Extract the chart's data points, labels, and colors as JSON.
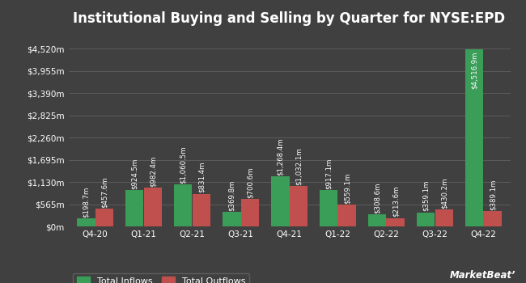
{
  "title": "Institutional Buying and Selling by Quarter for NYSE:EPD",
  "categories": [
    "Q4-20",
    "Q1-21",
    "Q2-21",
    "Q3-21",
    "Q4-21",
    "Q1-22",
    "Q2-22",
    "Q3-22",
    "Q4-22"
  ],
  "inflows": [
    198.7,
    924.5,
    1060.5,
    369.8,
    1268.4,
    917.1,
    308.6,
    359.1,
    4516.9
  ],
  "outflows": [
    457.6,
    982.4,
    831.4,
    700.6,
    1032.1,
    559.1,
    213.6,
    430.2,
    389.1
  ],
  "inflow_labels": [
    "$198.7m",
    "$924.5m",
    "$1,060.5m",
    "$369.8m",
    "$1,268.4m",
    "$917.1m",
    "$308.6m",
    "$359.1m",
    "$4,516.9m"
  ],
  "outflow_labels": [
    "$457.6m",
    "$982.4m",
    "$831.4m",
    "$700.6m",
    "$1,032.1m",
    "$559.1m",
    "$213.6m",
    "$430.2m",
    "$389.1m"
  ],
  "inflow_color": "#3a9e58",
  "outflow_color": "#c0504d",
  "background_color": "#404040",
  "text_color": "#ffffff",
  "grid_color": "#606060",
  "yticks": [
    0,
    565,
    1130,
    1695,
    2260,
    2825,
    3390,
    3955,
    4520
  ],
  "ytick_labels": [
    "$0m",
    "$565m",
    "$1,130m",
    "$1,695m",
    "$2,260m",
    "$2,825m",
    "$3,390m",
    "$3,955m",
    "$4,520m"
  ],
  "bar_width": 0.38,
  "legend_inflow": "Total Inflows",
  "legend_outflow": "Total Outflows",
  "title_fontsize": 12,
  "label_fontsize": 6.2,
  "tick_fontsize": 7.5,
  "legend_fontsize": 8,
  "watermark": "MarketBeat",
  "ylim_max": 4900
}
